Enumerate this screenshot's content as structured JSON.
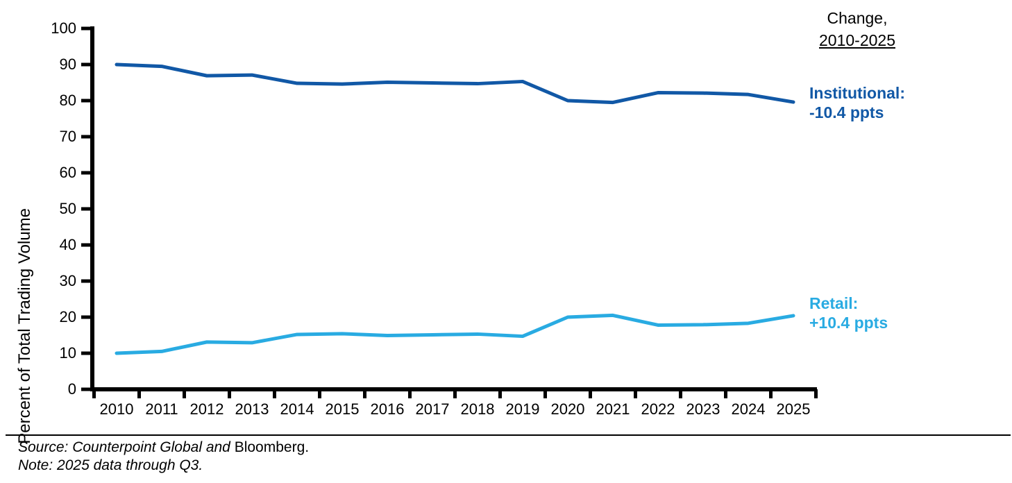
{
  "chart_data": {
    "type": "line",
    "title": "",
    "xlabel": "",
    "ylabel": "Percent of Total Trading Volume",
    "ylim": [
      0,
      100
    ],
    "yticks": [
      0,
      10,
      20,
      30,
      40,
      50,
      60,
      70,
      80,
      90,
      100
    ],
    "grid": false,
    "legend_position": "right-annotations",
    "categories": [
      "2010",
      "2011",
      "2012",
      "2013",
      "2014",
      "2015",
      "2016",
      "2017",
      "2018",
      "2019",
      "2020",
      "2021",
      "2022",
      "2023",
      "2024",
      "2025"
    ],
    "series": [
      {
        "name": "Institutional",
        "color": "#1158A6",
        "values": [
          90.0,
          89.5,
          86.9,
          87.1,
          84.8,
          84.6,
          85.1,
          84.9,
          84.7,
          85.3,
          80.0,
          79.5,
          82.2,
          82.1,
          81.7,
          79.6
        ]
      },
      {
        "name": "Retail",
        "color": "#29ABE2",
        "values": [
          10.0,
          10.5,
          13.1,
          12.9,
          15.2,
          15.4,
          14.9,
          15.1,
          15.3,
          14.7,
          20.0,
          20.5,
          17.8,
          17.9,
          18.3,
          20.4
        ]
      }
    ],
    "axis_color": "#000000"
  },
  "annotations": {
    "change_line1": "Change,",
    "change_line2": "2010-2025",
    "institutional_line1": "Institutional:",
    "institutional_line2": "-10.4 ppts",
    "retail_line1": "Retail:",
    "retail_line2": "+10.4 ppts"
  },
  "footer": {
    "source_italic": "Source: Counterpoint Global and ",
    "source_regular": "Bloomberg.",
    "note": "Note: 2025 data through Q3."
  }
}
